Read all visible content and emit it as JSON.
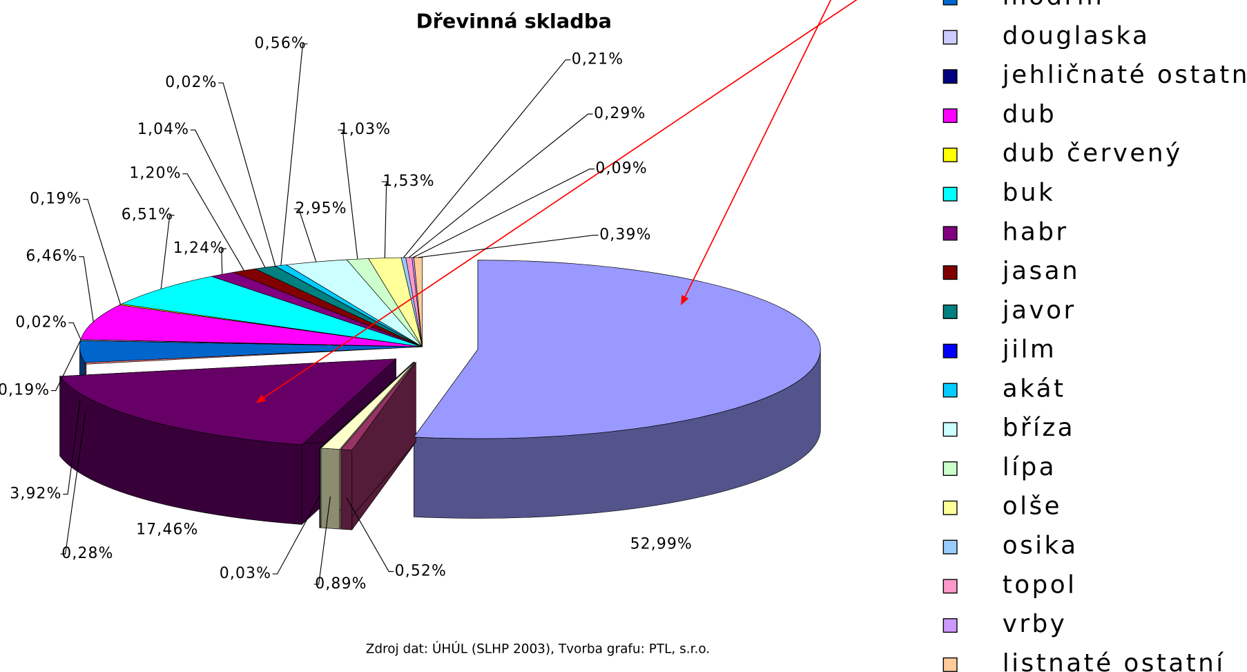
{
  "chart_data": {
    "type": "pie",
    "title": "Dřevinná skladba",
    "source": "Zdroj dat: ÚHÚL (SLHP 2003), Tvorba grafu: PTL, s.r.o.",
    "categories": [
      null,
      null,
      null,
      null,
      null,
      null,
      "modřín",
      "douglaska",
      "jehličnaté ostatní",
      "dub",
      "dub červený",
      "buk",
      "habr",
      "jasan",
      "javor",
      "jilm",
      "akát",
      "bříza",
      "lípa",
      "olše",
      "osika",
      "topol",
      "vrby",
      "listnaté ostatní"
    ],
    "values": [
      52.99,
      0.52,
      0.89,
      0.03,
      17.46,
      0.28,
      3.92,
      0.19,
      0.02,
      6.46,
      0.19,
      6.51,
      1.24,
      1.2,
      1.04,
      0.02,
      0.56,
      2.95,
      1.03,
      1.53,
      0.21,
      0.29,
      0.09,
      0.39
    ],
    "value_labels": [
      "52,99%",
      "0,52%",
      "0,89%",
      "0,03%",
      "17,46%",
      "0,28%",
      "3,92%",
      "0,19%",
      "0,02%",
      "6,46%",
      "0,19%",
      "6,51%",
      "1,24%",
      "1,20%",
      "1,04%",
      "0,02%",
      "0,56%",
      "2,95%",
      "1,03%",
      "1,53%",
      "0,21%",
      "0,29%",
      "0,09%",
      "0,39%"
    ],
    "colors": [
      "#9999FF",
      "#993366",
      "#FFFFCC",
      "#CCFFFF",
      "#660066",
      "#FF8080",
      "#0066CC",
      "#CCCCFF",
      "#000080",
      "#FF00FF",
      "#FFFF00",
      "#00FFFF",
      "#800080",
      "#800000",
      "#008080",
      "#0000FF",
      "#00CCFF",
      "#CCFFFF",
      "#CCFFCC",
      "#FFFF99",
      "#99CCFF",
      "#FF99CC",
      "#CC99FF",
      "#FFCC99"
    ],
    "legend": "right"
  }
}
